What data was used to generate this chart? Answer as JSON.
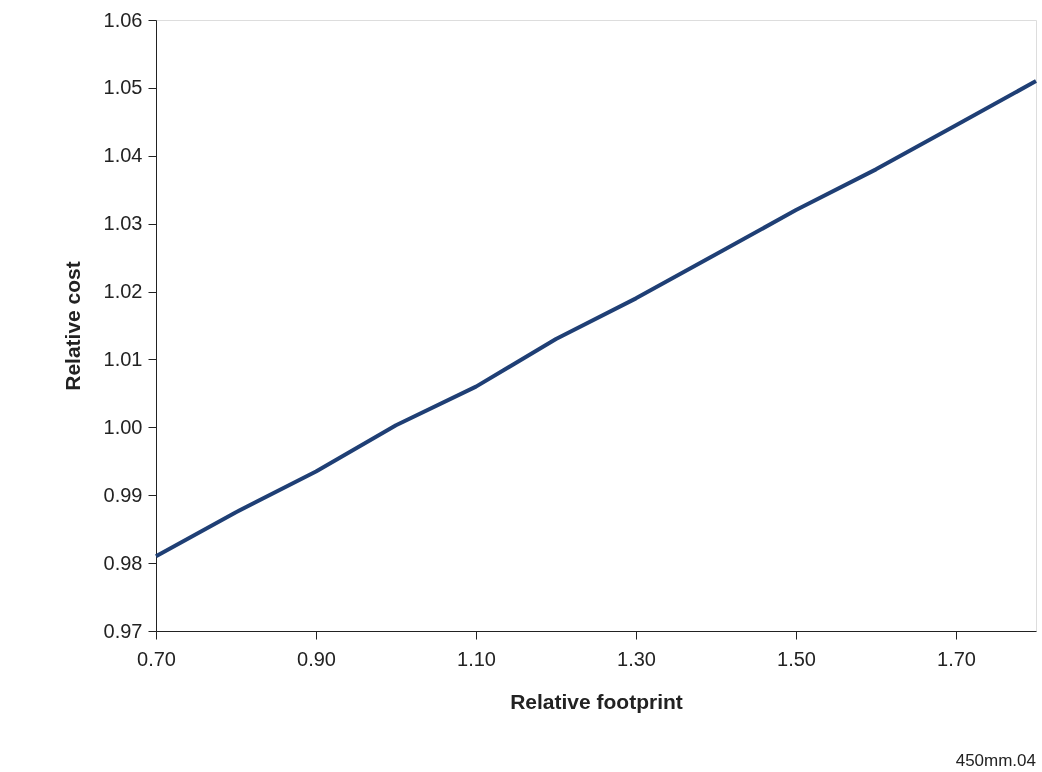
{
  "chart_data": {
    "type": "line",
    "xlabel": "Relative footprint",
    "ylabel": "Relative cost",
    "annotations": [
      "450mm.04"
    ],
    "x": [
      0.7,
      0.8,
      0.9,
      1.0,
      1.1,
      1.2,
      1.3,
      1.4,
      1.5,
      1.6,
      1.7,
      1.8
    ],
    "series": [
      {
        "color": "#1f3f75",
        "values": [
          0.981,
          0.9875,
          0.9935,
          1.0003,
          1.006,
          1.013,
          1.019,
          1.0255,
          1.032,
          1.038,
          1.0445,
          1.051
        ]
      }
    ],
    "xlim": [
      0.7,
      1.8
    ],
    "xticks": [
      {
        "value": 0.7,
        "label": "0.70"
      },
      {
        "value": 0.9,
        "label": "0.90"
      },
      {
        "value": 1.1,
        "label": "1.10"
      },
      {
        "value": 1.3,
        "label": "1.30"
      },
      {
        "value": 1.5,
        "label": "1.50"
      },
      {
        "value": 1.7,
        "label": "1.70"
      }
    ],
    "ylim": [
      0.97,
      1.06
    ],
    "yticks": [
      0.97,
      0.98,
      0.99,
      {
        "value": 1.0,
        "label": "1.00"
      },
      1.01,
      1.02,
      1.03,
      1.04,
      1.05,
      1.06
    ],
    "grid": false,
    "marker": "none",
    "line_style": "solid"
  }
}
